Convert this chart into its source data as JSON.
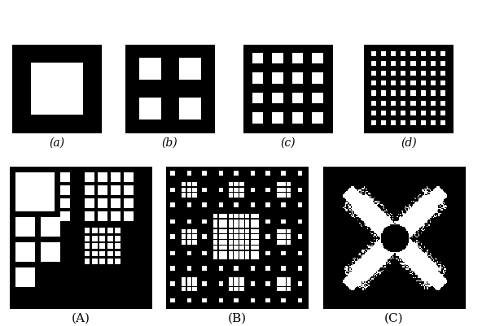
{
  "labels_top": [
    "(a)",
    "(b)",
    "(c)",
    "(d)"
  ],
  "labels_bottom": [
    "(A)",
    "(B)",
    "(C)"
  ],
  "fig_bg": "#ffffff"
}
